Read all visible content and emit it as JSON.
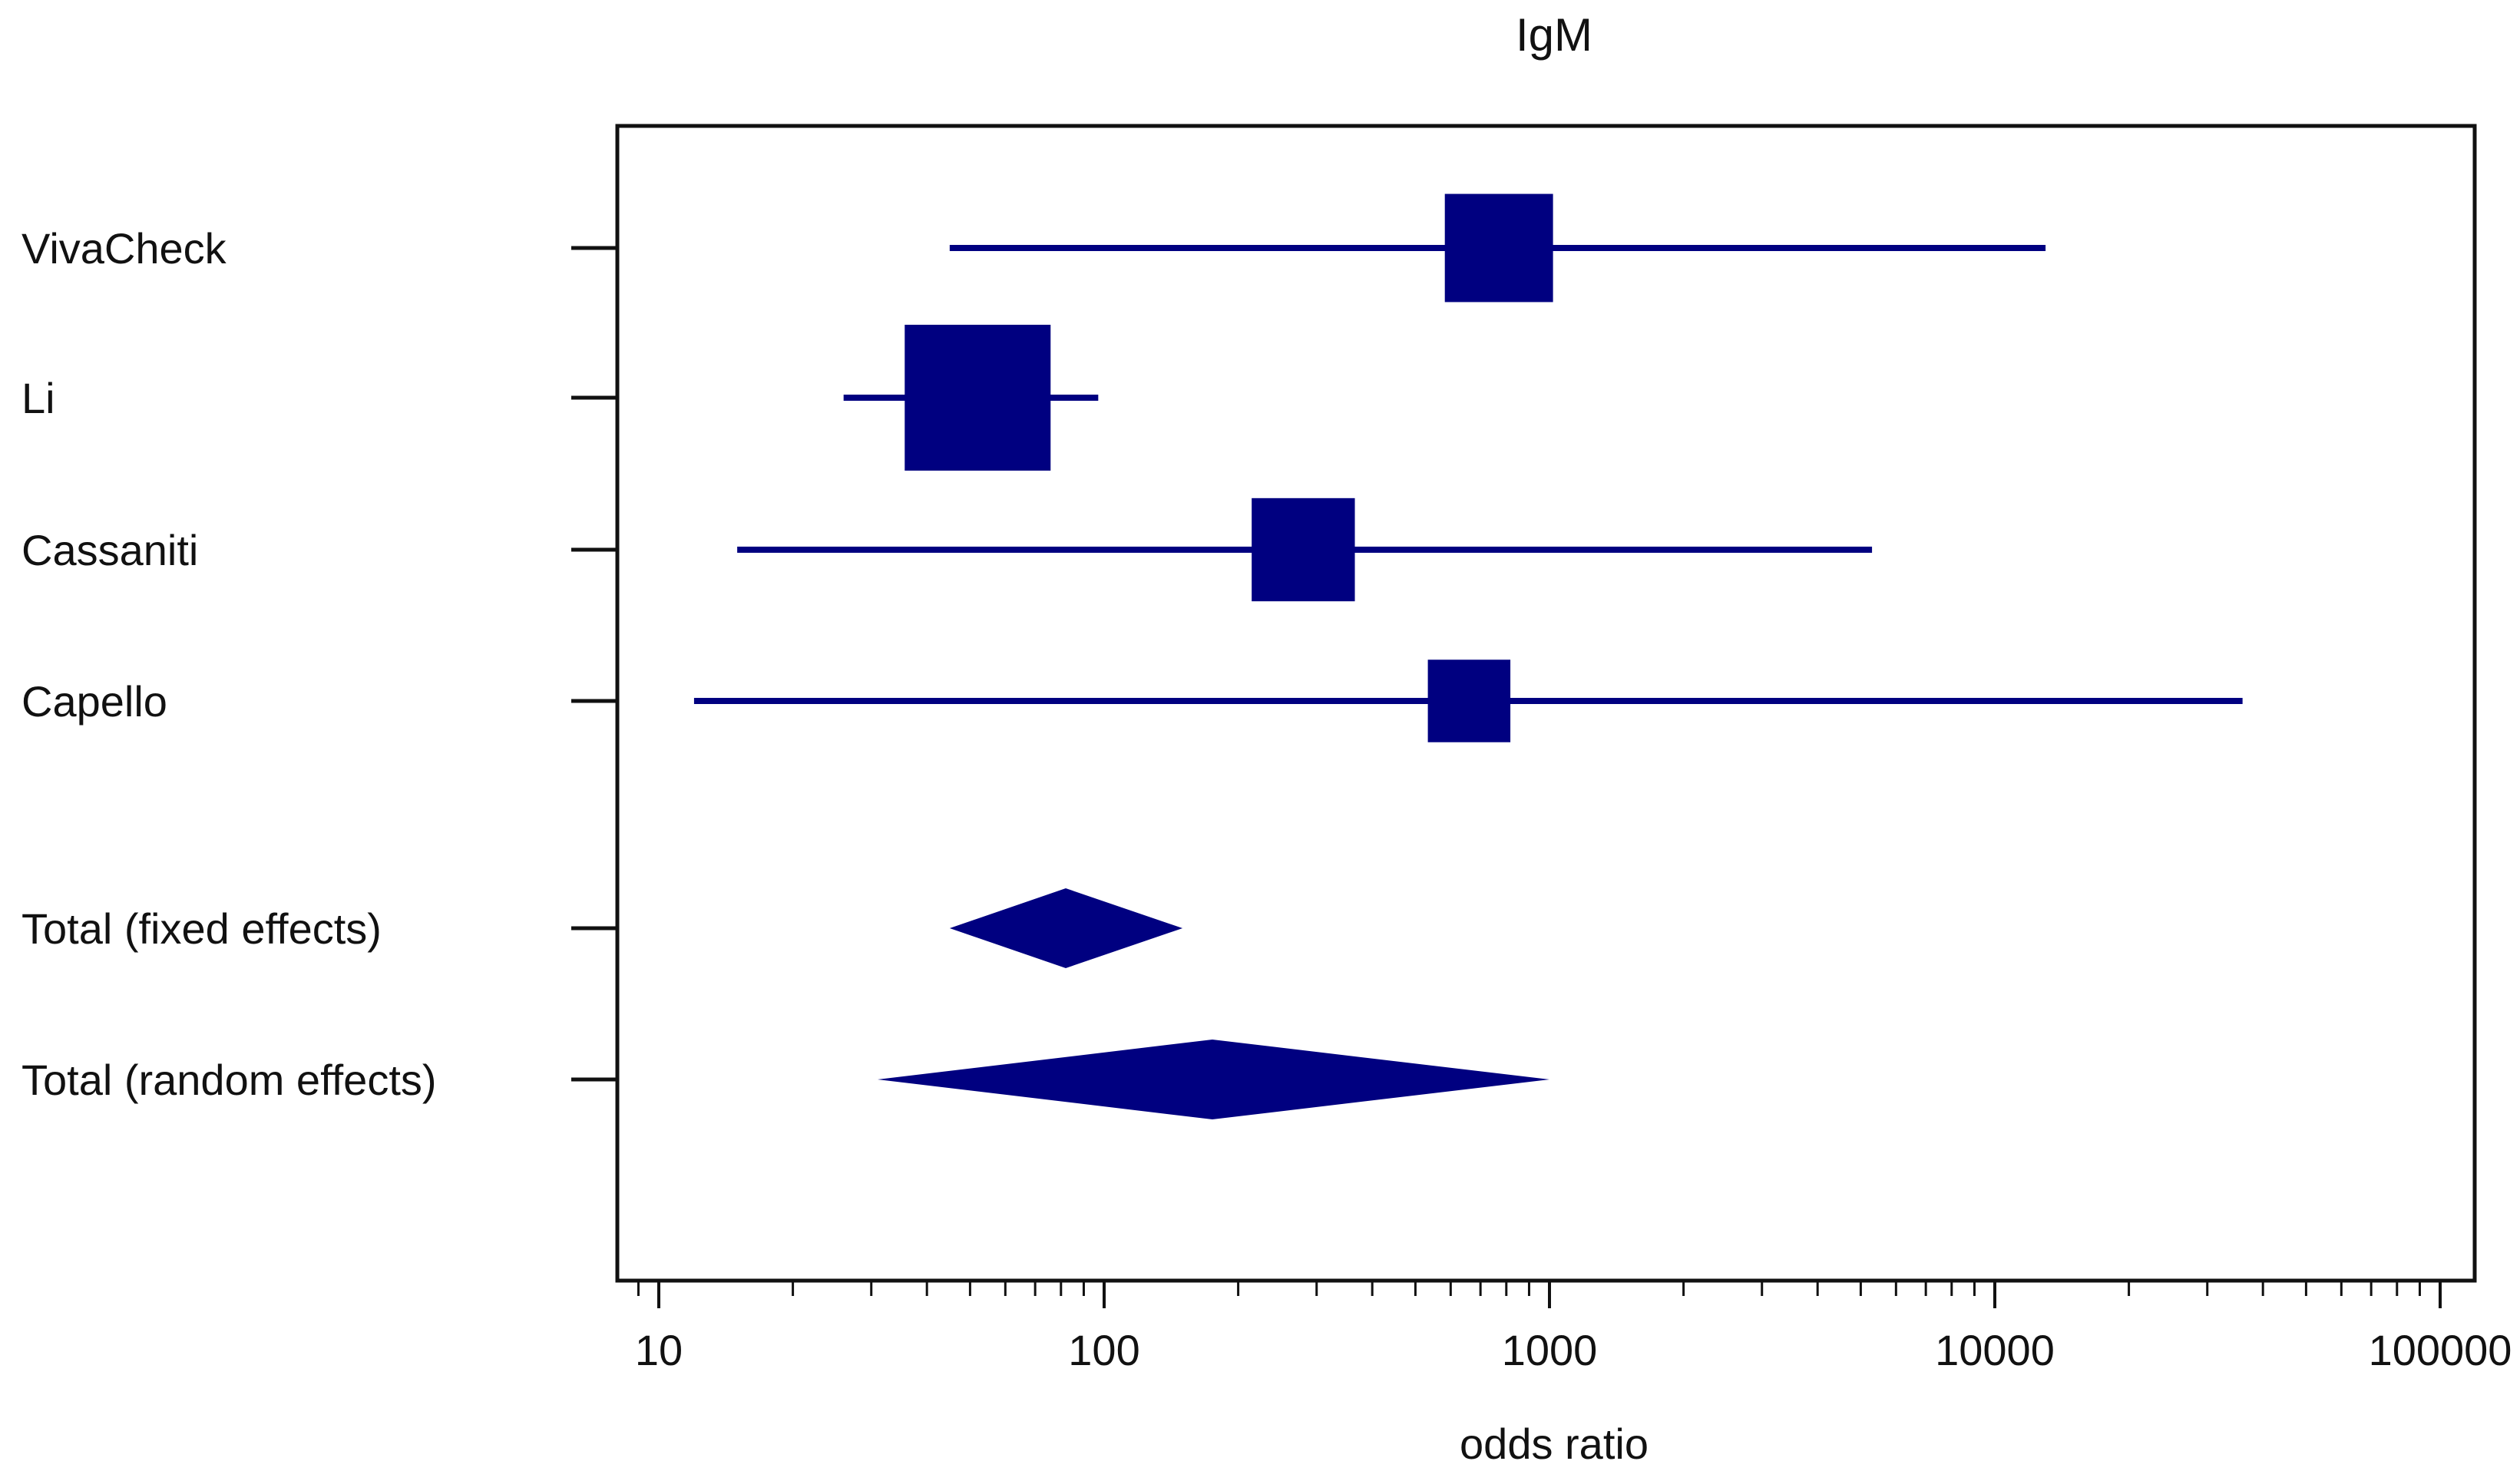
{
  "chart_data": {
    "type": "forest",
    "title": "IgM",
    "xlabel": "odds ratio",
    "x_scale": "log",
    "xlim": [
      8,
      120000
    ],
    "x_ticks": [
      {
        "value": 10,
        "label": "10"
      },
      {
        "value": 100,
        "label": "100"
      },
      {
        "value": 1000,
        "label": "1000"
      },
      {
        "value": 10000,
        "label": "10000"
      },
      {
        "value": 100000,
        "label": "100000"
      }
    ],
    "grid": false,
    "color": "#000080",
    "studies": [
      {
        "label": "VivaCheck",
        "estimate": 770,
        "ci_low": 45,
        "ci_high": 13000,
        "weight": 0.55
      },
      {
        "label": "Li",
        "estimate": 52,
        "ci_low": 26,
        "ci_high": 97,
        "weight": 1.0
      },
      {
        "label": "Cassaniti",
        "estimate": 280,
        "ci_low": 15,
        "ci_high": 5300,
        "weight": 0.5
      },
      {
        "label": "Capello",
        "estimate": 660,
        "ci_low": 12,
        "ci_high": 36000,
        "weight": 0.32
      }
    ],
    "totals": [
      {
        "label": "Total (fixed effects)",
        "estimate": 82,
        "ci_low": 45,
        "ci_high": 150
      },
      {
        "label": "Total (random effects)",
        "estimate": 175,
        "ci_low": 31,
        "ci_high": 1000
      }
    ]
  }
}
